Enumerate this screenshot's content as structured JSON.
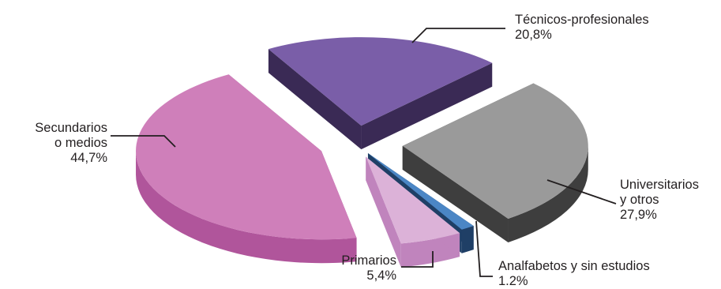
{
  "chart_data": {
    "type": "pie",
    "style": "exploded-3d",
    "unit": "%",
    "slices": [
      {
        "name": "Técnicos-profesionales",
        "value": 20.8,
        "value_label": "20,8%",
        "color": "#7a5ea8",
        "side_color": "#3a2a55",
        "label_lines": [
          "Técnicos-profesionales",
          "20,8%"
        ]
      },
      {
        "name": "Universitarios y otros",
        "value": 27.9,
        "value_label": "27,9%",
        "color": "#9a9a9a",
        "side_color": "#3e3e3e",
        "label_lines": [
          "Universitarios",
          "y otros",
          "27,9%"
        ]
      },
      {
        "name": "Analfabetos y sin estudios",
        "value": 1.2,
        "value_label": "1.2%",
        "color": "#4b86c5",
        "side_color": "#1f3f66",
        "label_lines": [
          "Analfabetos y sin estudios",
          "1.2%"
        ]
      },
      {
        "name": "Primarios",
        "value": 5.4,
        "value_label": "5,4%",
        "color": "#dcb2d8",
        "side_color": "#c084bd",
        "label_lines": [
          "Primarios",
          "5,4%"
        ]
      },
      {
        "name": "Secundarios o medios",
        "value": 44.7,
        "value_label": "44,7%",
        "color": "#cf7fba",
        "side_color": "#b0559b",
        "label_lines": [
          "Secundarios",
          "o medios",
          "44,7%"
        ]
      }
    ]
  }
}
